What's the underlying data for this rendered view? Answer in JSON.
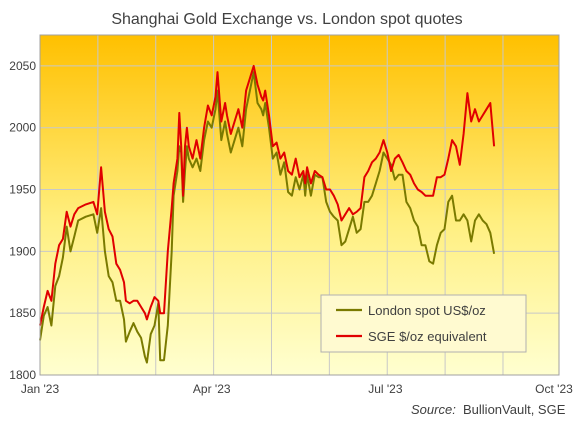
{
  "chart_data": {
    "type": "line",
    "title": "Shanghai  Gold Exchange  vs.  London spot quotes",
    "source_label": "Source:",
    "source_text": "BullionVault, SGE",
    "ylim": [
      1800,
      2075
    ],
    "yticks": [
      1800,
      1850,
      1900,
      1950,
      2000,
      2050
    ],
    "xlim": [
      0,
      272
    ],
    "xticks": [
      {
        "label": "Jan '23",
        "x": 0
      },
      {
        "label": "Apr '23",
        "x": 90
      },
      {
        "label": "Jul '23",
        "x": 181
      },
      {
        "label": "Oct '23",
        "x": 273
      }
    ],
    "grid": true,
    "legend_position": "bottom-right",
    "colors": {
      "bg_top": "#ffc000",
      "bg_bottom": "#ffffd0",
      "grid": "#c8c8c8",
      "london": "#7a7a00",
      "sge": "#e00000"
    },
    "series": [
      {
        "name": "London spot US$/oz",
        "color": "#7a7a00",
        "points": [
          [
            0,
            1828
          ],
          [
            2,
            1848
          ],
          [
            4,
            1855
          ],
          [
            6,
            1840
          ],
          [
            8,
            1872
          ],
          [
            10,
            1880
          ],
          [
            12,
            1895
          ],
          [
            14,
            1920
          ],
          [
            16,
            1900
          ],
          [
            18,
            1912
          ],
          [
            20,
            1925
          ],
          [
            24,
            1928
          ],
          [
            28,
            1930
          ],
          [
            30,
            1915
          ],
          [
            32,
            1935
          ],
          [
            34,
            1900
          ],
          [
            36,
            1880
          ],
          [
            38,
            1875
          ],
          [
            40,
            1860
          ],
          [
            42,
            1860
          ],
          [
            44,
            1845
          ],
          [
            45,
            1827
          ],
          [
            47,
            1835
          ],
          [
            49,
            1842
          ],
          [
            51,
            1835
          ],
          [
            53,
            1830
          ],
          [
            55,
            1815
          ],
          [
            56,
            1810
          ],
          [
            58,
            1833
          ],
          [
            60,
            1840
          ],
          [
            62,
            1858
          ],
          [
            63,
            1812
          ],
          [
            65,
            1812
          ],
          [
            67,
            1840
          ],
          [
            69,
            1900
          ],
          [
            70,
            1945
          ],
          [
            72,
            1965
          ],
          [
            73,
            1985
          ],
          [
            74,
            1980
          ],
          [
            75,
            1940
          ],
          [
            76,
            1965
          ],
          [
            77,
            1985
          ],
          [
            78,
            1975
          ],
          [
            80,
            1968
          ],
          [
            82,
            1975
          ],
          [
            84,
            1965
          ],
          [
            86,
            1990
          ],
          [
            88,
            2005
          ],
          [
            90,
            2000
          ],
          [
            92,
            2015
          ],
          [
            93,
            2030
          ],
          [
            95,
            1990
          ],
          [
            97,
            2005
          ],
          [
            98,
            1995
          ],
          [
            100,
            1980
          ],
          [
            102,
            1990
          ],
          [
            104,
            2000
          ],
          [
            106,
            1985
          ],
          [
            108,
            2015
          ],
          [
            110,
            2030
          ],
          [
            112,
            2045
          ],
          [
            114,
            2020
          ],
          [
            116,
            2015
          ],
          [
            117,
            2010
          ],
          [
            118,
            2020
          ],
          [
            120,
            2000
          ],
          [
            122,
            1975
          ],
          [
            124,
            1980
          ],
          [
            126,
            1962
          ],
          [
            128,
            1972
          ],
          [
            130,
            1948
          ],
          [
            132,
            1945
          ],
          [
            134,
            1960
          ],
          [
            136,
            1950
          ],
          [
            138,
            1962
          ],
          [
            139,
            1945
          ],
          [
            140,
            1962
          ],
          [
            142,
            1945
          ],
          [
            144,
            1962
          ],
          [
            146,
            1960
          ],
          [
            148,
            1960
          ],
          [
            150,
            1940
          ],
          [
            152,
            1932
          ],
          [
            154,
            1928
          ],
          [
            156,
            1925
          ],
          [
            158,
            1905
          ],
          [
            160,
            1908
          ],
          [
            162,
            1918
          ],
          [
            164,
            1928
          ],
          [
            166,
            1915
          ],
          [
            168,
            1918
          ],
          [
            170,
            1940
          ],
          [
            172,
            1940
          ],
          [
            174,
            1945
          ],
          [
            176,
            1955
          ],
          [
            178,
            1965
          ],
          [
            180,
            1980
          ],
          [
            182,
            1975
          ],
          [
            184,
            1970
          ],
          [
            186,
            1958
          ],
          [
            188,
            1962
          ],
          [
            190,
            1962
          ],
          [
            192,
            1940
          ],
          [
            194,
            1935
          ],
          [
            196,
            1925
          ],
          [
            198,
            1920
          ],
          [
            200,
            1905
          ],
          [
            202,
            1905
          ],
          [
            204,
            1892
          ],
          [
            206,
            1890
          ],
          [
            208,
            1905
          ],
          [
            210,
            1915
          ],
          [
            212,
            1918
          ],
          [
            214,
            1940
          ],
          [
            216,
            1945
          ],
          [
            218,
            1925
          ],
          [
            220,
            1925
          ],
          [
            222,
            1930
          ],
          [
            224,
            1925
          ],
          [
            226,
            1908
          ],
          [
            228,
            1925
          ],
          [
            230,
            1930
          ],
          [
            232,
            1925
          ],
          [
            234,
            1922
          ],
          [
            236,
            1915
          ],
          [
            238,
            1898
          ]
        ]
      },
      {
        "name": "SGE $/oz equivalent",
        "color": "#e00000",
        "points": [
          [
            0,
            1840
          ],
          [
            2,
            1855
          ],
          [
            4,
            1868
          ],
          [
            6,
            1860
          ],
          [
            8,
            1890
          ],
          [
            10,
            1905
          ],
          [
            12,
            1910
          ],
          [
            14,
            1932
          ],
          [
            16,
            1920
          ],
          [
            18,
            1930
          ],
          [
            20,
            1935
          ],
          [
            24,
            1938
          ],
          [
            28,
            1940
          ],
          [
            30,
            1930
          ],
          [
            32,
            1968
          ],
          [
            34,
            1932
          ],
          [
            36,
            1918
          ],
          [
            38,
            1912
          ],
          [
            40,
            1890
          ],
          [
            42,
            1885
          ],
          [
            44,
            1875
          ],
          [
            45,
            1860
          ],
          [
            47,
            1858
          ],
          [
            49,
            1860
          ],
          [
            51,
            1860
          ],
          [
            53,
            1855
          ],
          [
            55,
            1850
          ],
          [
            56,
            1845
          ],
          [
            58,
            1855
          ],
          [
            60,
            1863
          ],
          [
            62,
            1860
          ],
          [
            63,
            1850
          ],
          [
            65,
            1850
          ],
          [
            67,
            1900
          ],
          [
            69,
            1935
          ],
          [
            70,
            1955
          ],
          [
            72,
            1975
          ],
          [
            73,
            2012
          ],
          [
            74,
            1985
          ],
          [
            75,
            1945
          ],
          [
            76,
            1985
          ],
          [
            77,
            2000
          ],
          [
            78,
            1985
          ],
          [
            80,
            1975
          ],
          [
            82,
            1990
          ],
          [
            84,
            1975
          ],
          [
            86,
            2000
          ],
          [
            88,
            2018
          ],
          [
            90,
            2010
          ],
          [
            92,
            2025
          ],
          [
            93,
            2045
          ],
          [
            95,
            2005
          ],
          [
            97,
            2020
          ],
          [
            98,
            2010
          ],
          [
            100,
            1995
          ],
          [
            102,
            2005
          ],
          [
            104,
            2015
          ],
          [
            106,
            2000
          ],
          [
            108,
            2030
          ],
          [
            110,
            2040
          ],
          [
            112,
            2050
          ],
          [
            114,
            2035
          ],
          [
            116,
            2025
          ],
          [
            117,
            2022
          ],
          [
            118,
            2030
          ],
          [
            120,
            2010
          ],
          [
            122,
            1985
          ],
          [
            124,
            1988
          ],
          [
            126,
            1975
          ],
          [
            128,
            1980
          ],
          [
            130,
            1965
          ],
          [
            132,
            1962
          ],
          [
            134,
            1975
          ],
          [
            136,
            1960
          ],
          [
            138,
            1965
          ],
          [
            139,
            1955
          ],
          [
            140,
            1968
          ],
          [
            142,
            1955
          ],
          [
            144,
            1965
          ],
          [
            146,
            1962
          ],
          [
            148,
            1960
          ],
          [
            150,
            1950
          ],
          [
            152,
            1950
          ],
          [
            154,
            1945
          ],
          [
            156,
            1938
          ],
          [
            158,
            1925
          ],
          [
            160,
            1930
          ],
          [
            162,
            1935
          ],
          [
            164,
            1930
          ],
          [
            166,
            1932
          ],
          [
            168,
            1935
          ],
          [
            170,
            1960
          ],
          [
            172,
            1965
          ],
          [
            174,
            1972
          ],
          [
            176,
            1975
          ],
          [
            178,
            1980
          ],
          [
            180,
            1990
          ],
          [
            182,
            1980
          ],
          [
            184,
            1965
          ],
          [
            186,
            1975
          ],
          [
            188,
            1978
          ],
          [
            190,
            1972
          ],
          [
            192,
            1965
          ],
          [
            194,
            1962
          ],
          [
            196,
            1955
          ],
          [
            198,
            1950
          ],
          [
            200,
            1948
          ],
          [
            202,
            1945
          ],
          [
            204,
            1945
          ],
          [
            206,
            1945
          ],
          [
            208,
            1960
          ],
          [
            210,
            1960
          ],
          [
            212,
            1962
          ],
          [
            214,
            1975
          ],
          [
            216,
            1990
          ],
          [
            218,
            1985
          ],
          [
            220,
            1970
          ],
          [
            222,
            1995
          ],
          [
            224,
            2028
          ],
          [
            226,
            2005
          ],
          [
            228,
            2015
          ],
          [
            230,
            2005
          ],
          [
            232,
            2010
          ],
          [
            234,
            2015
          ],
          [
            236,
            2020
          ],
          [
            238,
            1985
          ]
        ]
      }
    ]
  }
}
